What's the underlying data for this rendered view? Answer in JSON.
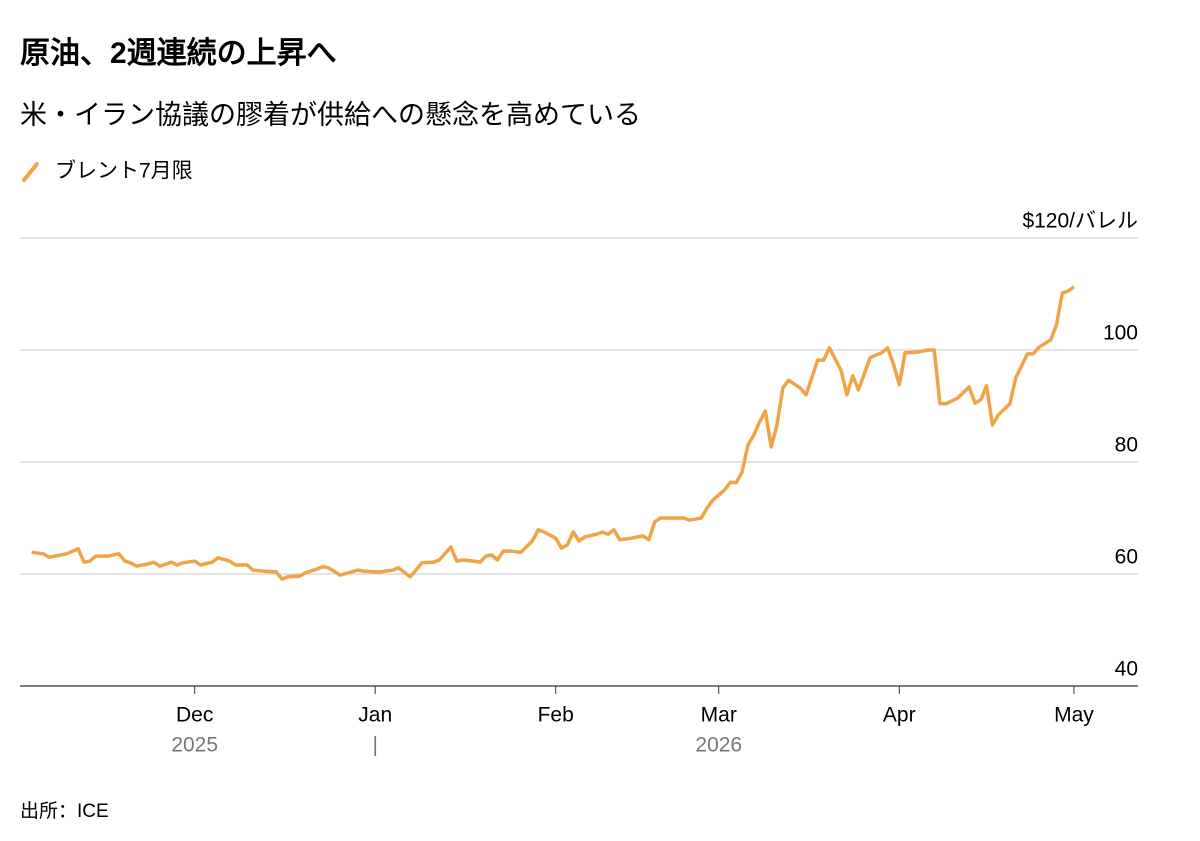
{
  "chart_data": {
    "type": "line",
    "title": "原油、2週連続の上昇へ",
    "subtitle": "米・イラン協議の膠着が供給への懸念を高めている",
    "source": "出所：ICE",
    "series": [
      {
        "name": "ブレント7月限",
        "color": "#eea447",
        "x": [
          "2025-11-03",
          "2025-11-05",
          "2025-11-06",
          "2025-11-08",
          "2025-11-09",
          "2025-11-11",
          "2025-11-12",
          "2025-11-13",
          "2025-11-14",
          "2025-11-16",
          "2025-11-18",
          "2025-11-19",
          "2025-11-20",
          "2025-11-21",
          "2025-11-23",
          "2025-11-24",
          "2025-11-25",
          "2025-11-27",
          "2025-11-28",
          "2025-11-29",
          "2025-12-01",
          "2025-12-02",
          "2025-12-04",
          "2025-12-05",
          "2025-12-07",
          "2025-12-08",
          "2025-12-10",
          "2025-12-11",
          "2025-12-13",
          "2025-12-15",
          "2025-12-16",
          "2025-12-17",
          "2025-12-19",
          "2025-12-20",
          "2025-12-22",
          "2025-12-23",
          "2025-12-24",
          "2025-12-26",
          "2025-12-28",
          "2025-12-29",
          "2025-12-30",
          "2026-01-01",
          "2026-01-02",
          "2026-01-04",
          "2026-01-05",
          "2026-01-07",
          "2026-01-08",
          "2026-01-09",
          "2026-01-11",
          "2026-01-12",
          "2026-01-14",
          "2026-01-15",
          "2026-01-16",
          "2026-01-18",
          "2026-01-19",
          "2026-01-20",
          "2026-01-21",
          "2026-01-22",
          "2026-01-23",
          "2026-01-24",
          "2026-01-26",
          "2026-01-28",
          "2026-01-29",
          "2026-01-30",
          "2026-02-01",
          "2026-02-02",
          "2026-02-03",
          "2026-02-04",
          "2026-02-05",
          "2026-02-06",
          "2026-02-08",
          "2026-02-09",
          "2026-02-10",
          "2026-02-11",
          "2026-02-12",
          "2026-02-14",
          "2026-02-16",
          "2026-02-17",
          "2026-02-18",
          "2026-02-19",
          "2026-02-21",
          "2026-02-23",
          "2026-02-24",
          "2026-02-26",
          "2026-02-27",
          "2026-02-28",
          "2026-03-02",
          "2026-03-03",
          "2026-03-04",
          "2026-03-05",
          "2026-03-06",
          "2026-03-07",
          "2026-03-08",
          "2026-03-09",
          "2026-03-10",
          "2026-03-11",
          "2026-03-12",
          "2026-03-13",
          "2026-03-15",
          "2026-03-16",
          "2026-03-18",
          "2026-03-19",
          "2026-03-20",
          "2026-03-22",
          "2026-03-23",
          "2026-03-24",
          "2026-03-25",
          "2026-03-27",
          "2026-03-28",
          "2026-03-29",
          "2026-03-30",
          "2026-03-31",
          "2026-04-01",
          "2026-04-02",
          "2026-04-04",
          "2026-04-05",
          "2026-04-06",
          "2026-04-07",
          "2026-04-08",
          "2026-04-09",
          "2026-04-11",
          "2026-04-13",
          "2026-04-14",
          "2026-04-15",
          "2026-04-16",
          "2026-04-17",
          "2026-04-18",
          "2026-04-20",
          "2026-04-21",
          "2026-04-23",
          "2026-04-24",
          "2026-04-25",
          "2026-04-27",
          "2026-04-28",
          "2026-04-29",
          "2026-04-30",
          "2026-05-01"
        ],
        "values": [
          63.9,
          63.6,
          63.0,
          63.4,
          63.6,
          64.5,
          62.1,
          62.3,
          63.2,
          63.2,
          63.6,
          62.3,
          62.0,
          61.4,
          61.8,
          62.1,
          61.4,
          62.1,
          61.6,
          62.0,
          62.3,
          61.6,
          62.1,
          62.9,
          62.3,
          61.6,
          61.6,
          60.7,
          60.5,
          60.4,
          59.1,
          59.5,
          59.6,
          60.2,
          60.9,
          61.3,
          61.1,
          59.8,
          60.4,
          60.7,
          60.5,
          60.4,
          60.4,
          60.7,
          61.1,
          59.5,
          60.7,
          62.0,
          62.1,
          62.5,
          64.8,
          62.3,
          62.5,
          62.3,
          62.1,
          63.2,
          63.4,
          62.5,
          64.1,
          64.1,
          63.9,
          65.9,
          67.9,
          67.5,
          66.4,
          64.6,
          65.2,
          67.5,
          65.9,
          66.6,
          67.1,
          67.5,
          67.1,
          67.9,
          66.1,
          66.4,
          66.8,
          66.1,
          69.3,
          70.0,
          70.0,
          70.0,
          69.6,
          70.0,
          71.8,
          73.2,
          75.0,
          76.4,
          76.3,
          78.2,
          83.0,
          84.8,
          87.1,
          89.1,
          82.7,
          86.6,
          93.2,
          94.6,
          93.2,
          92.0,
          98.2,
          98.2,
          100.4,
          96.4,
          92.0,
          95.4,
          92.9,
          98.6,
          99.1,
          99.5,
          100.4,
          97.5,
          93.8,
          99.5,
          99.6,
          99.8,
          100.0,
          100.0,
          90.4,
          90.4,
          91.4,
          93.4,
          90.5,
          91.1,
          93.6,
          86.6,
          88.4,
          90.4,
          95.0,
          99.3,
          99.3,
          100.5,
          101.8,
          104.5,
          110.2,
          110.5,
          111.3
        ]
      }
    ],
    "xlim": [
      "2025-11-01",
      "2026-05-12"
    ],
    "xticks": [
      {
        "value": "2025-12-01",
        "label": "Dec"
      },
      {
        "value": "2026-01-01",
        "label": "Jan"
      },
      {
        "value": "2026-02-01",
        "label": "Feb"
      },
      {
        "value": "2026-03-01",
        "label": "Mar"
      },
      {
        "value": "2026-04-01",
        "label": "Apr"
      },
      {
        "value": "2026-05-01",
        "label": "May"
      }
    ],
    "year_labels": [
      {
        "value": "2025-12-01",
        "label": "2025"
      },
      {
        "value": "2026-01-01",
        "label": "|"
      },
      {
        "value": "2026-03-01",
        "label": "2026"
      }
    ],
    "ylim": [
      40,
      120
    ],
    "yticks": [
      40,
      60,
      80,
      100,
      {
        "value": 120,
        "label": "$120/バレル"
      }
    ],
    "grid": true
  }
}
